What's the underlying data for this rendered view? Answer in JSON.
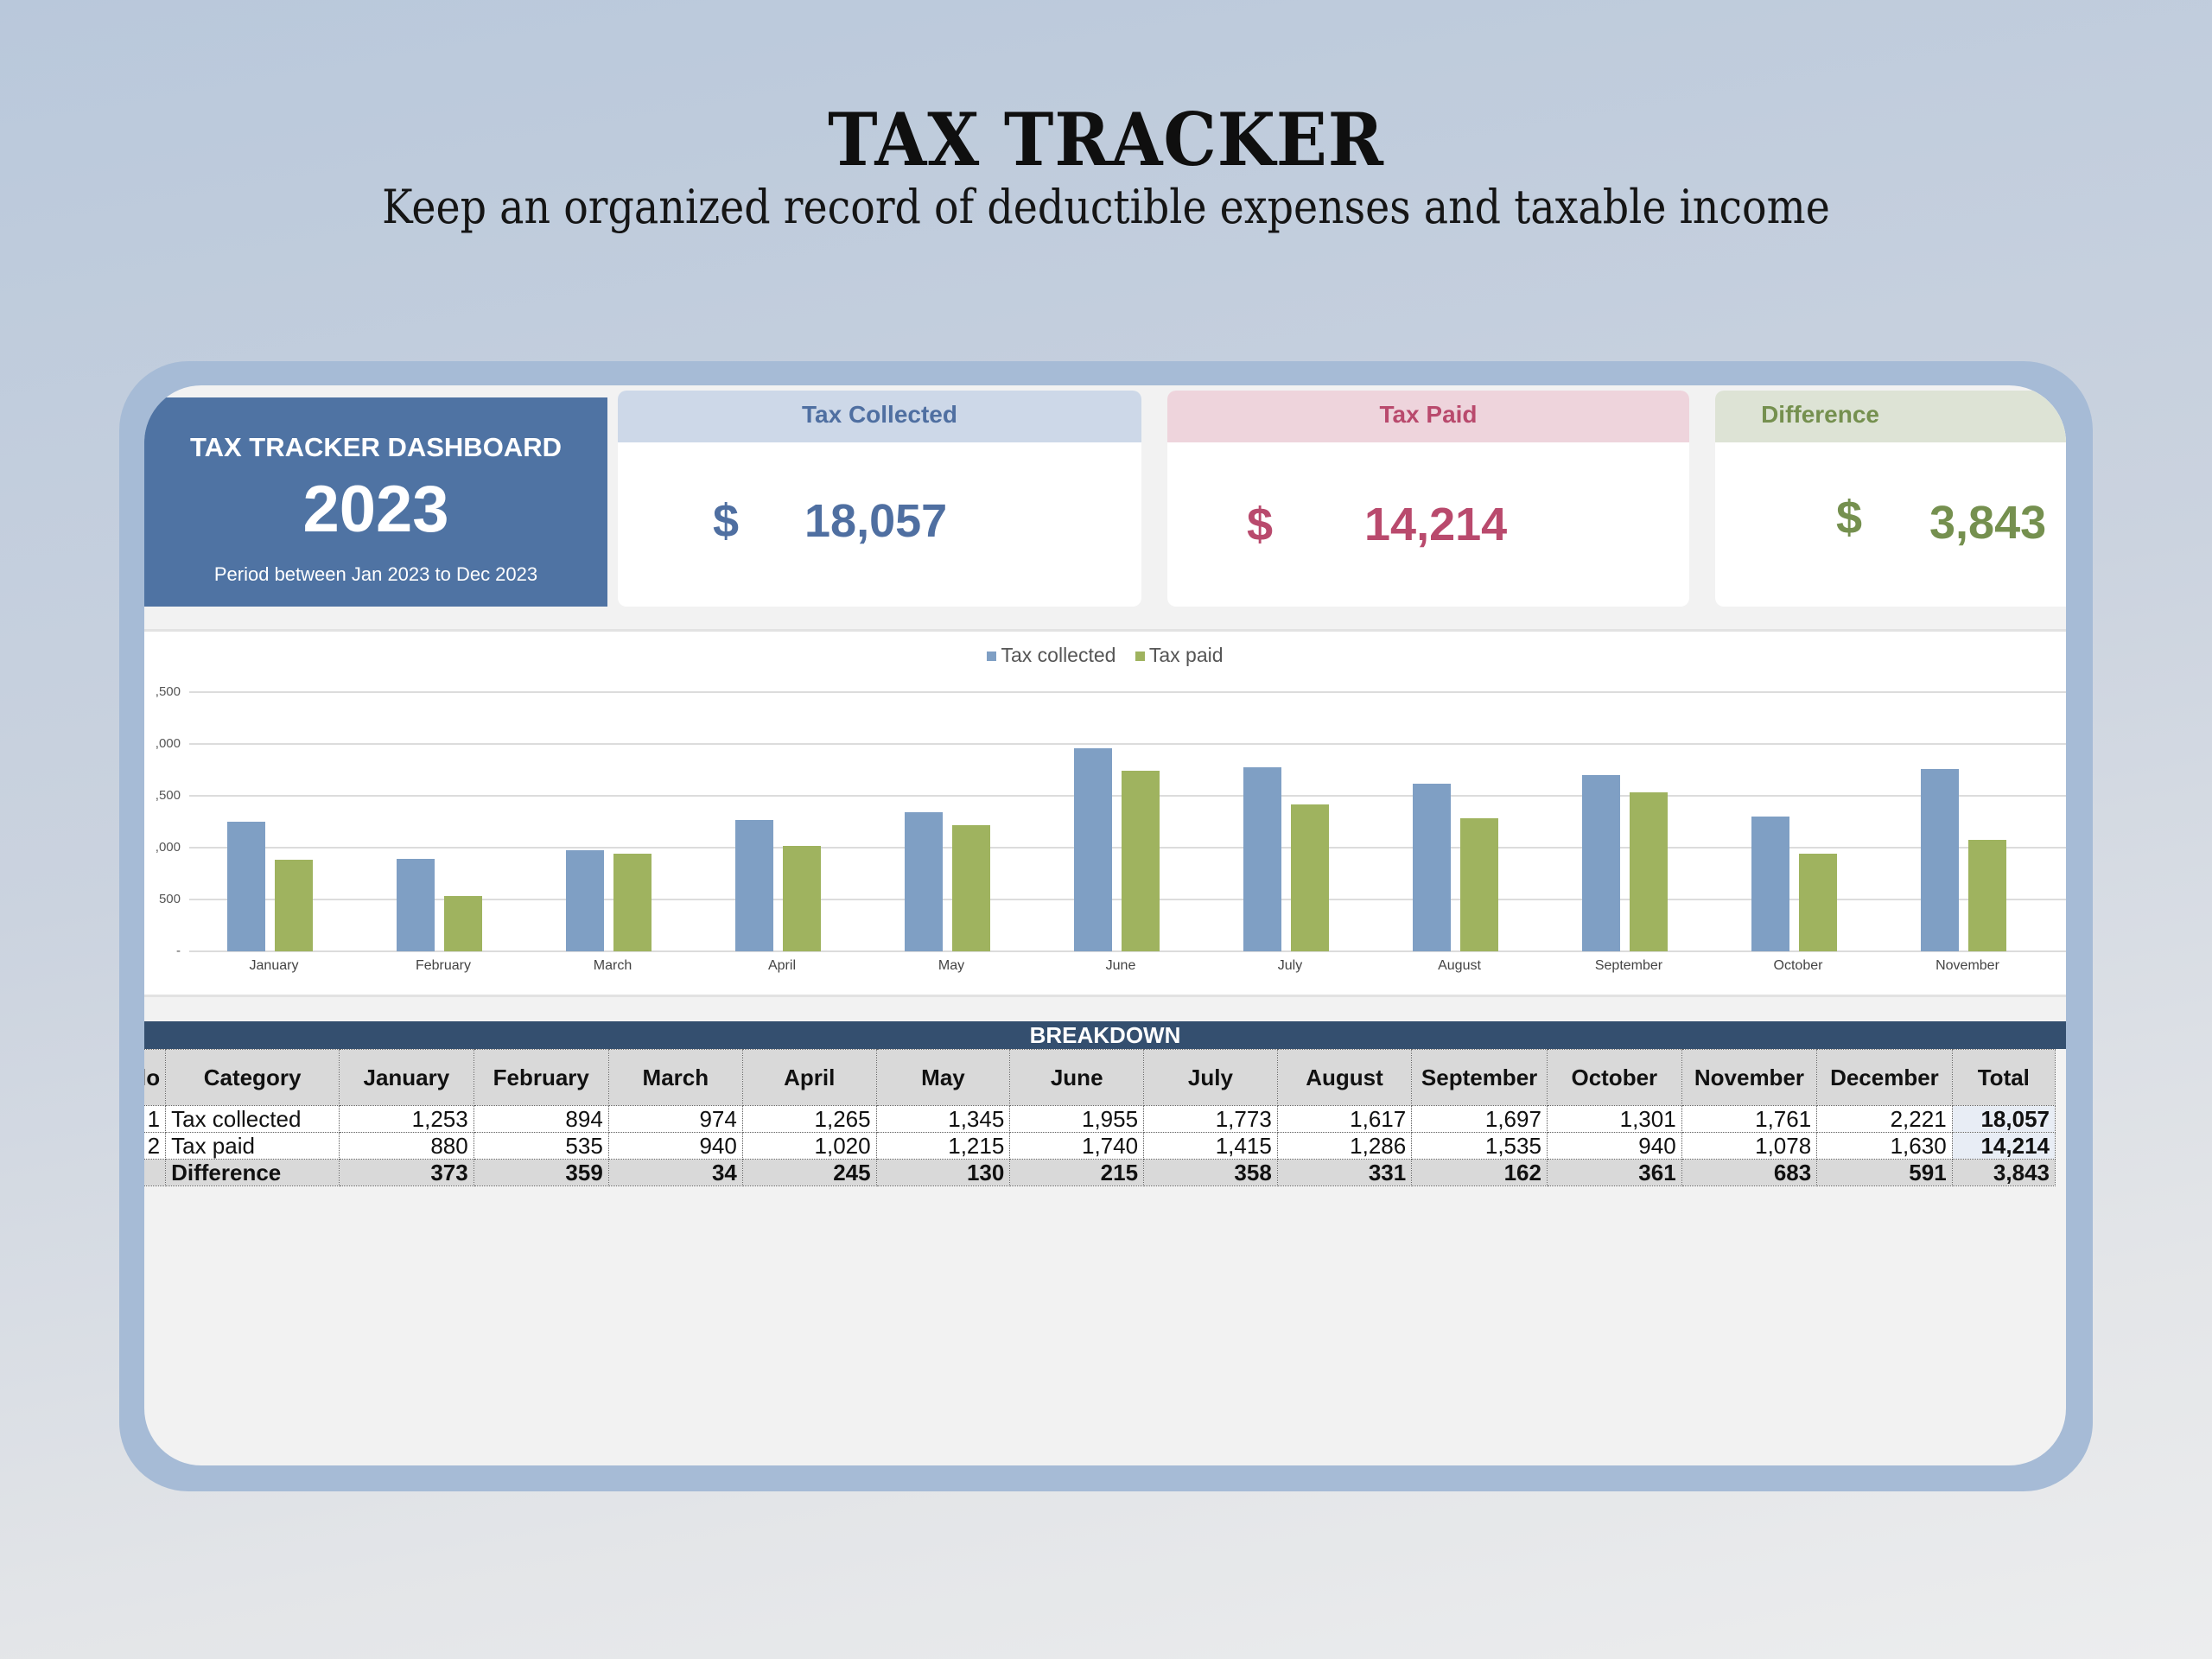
{
  "page": {
    "title": "TAX TRACKER",
    "subtitle": "Keep an organized record of deductible expenses and taxable income"
  },
  "dashboard": {
    "title": "TAX TRACKER DASHBOARD",
    "year": "2023",
    "period": "Period between Jan 2023 to Dec 2023"
  },
  "kpis": [
    {
      "label": "Tax Collected",
      "currency": "$",
      "value": "18,057",
      "color": "#4f6fa1",
      "head_bg": "#cdd8e8"
    },
    {
      "label": "Tax Paid",
      "currency": "$",
      "value": "14,214",
      "color": "#b94a6d",
      "head_bg": "#eed4dc"
    },
    {
      "label": "Difference",
      "currency": "$",
      "value": "3,843",
      "color": "#75904f",
      "head_bg": "#dde3d5"
    }
  ],
  "colors": {
    "tax_collected": "#7f9fc4",
    "tax_paid": "#9fb35f",
    "hero_bg": "#4f73a3",
    "table_title_bg": "#344f6f"
  },
  "chart_data": {
    "type": "bar",
    "title": "",
    "xlabel": "",
    "ylabel": "",
    "ylim": [
      0,
      2500
    ],
    "grid": true,
    "legend_position": "top",
    "y_ticks": [
      "-",
      "500",
      ",000",
      ",500",
      ",000",
      ",500"
    ],
    "categories": [
      "January",
      "February",
      "March",
      "April",
      "May",
      "June",
      "July",
      "August",
      "September",
      "October",
      "November"
    ],
    "series": [
      {
        "name": "Tax collected",
        "color": "#7f9fc4",
        "values": [
          1253,
          894,
          974,
          1265,
          1345,
          1955,
          1773,
          1617,
          1697,
          1301,
          1761
        ]
      },
      {
        "name": "Tax paid",
        "color": "#9fb35f",
        "values": [
          880,
          535,
          940,
          1020,
          1215,
          1740,
          1415,
          1286,
          1535,
          940,
          1078
        ]
      }
    ]
  },
  "breakdown": {
    "title": "BREAKDOWN",
    "columns": [
      "lo",
      "Category",
      "January",
      "February",
      "March",
      "April",
      "May",
      "June",
      "July",
      "August",
      "September",
      "October",
      "November",
      "December",
      "Total"
    ],
    "rows": [
      {
        "no": "1",
        "category": "Tax collected",
        "values": [
          "1,253",
          "894",
          "974",
          "1,265",
          "1,345",
          "1,955",
          "1,773",
          "1,617",
          "1,697",
          "1,301",
          "1,761",
          "2,221"
        ],
        "total": "18,057"
      },
      {
        "no": "2",
        "category": "Tax paid",
        "values": [
          "880",
          "535",
          "940",
          "1,020",
          "1,215",
          "1,740",
          "1,415",
          "1,286",
          "1,535",
          "940",
          "1,078",
          "1,630"
        ],
        "total": "14,214"
      },
      {
        "no": "",
        "category": "Difference",
        "values": [
          "373",
          "359",
          "34",
          "245",
          "130",
          "215",
          "358",
          "331",
          "162",
          "361",
          "683",
          "591"
        ],
        "total": "3,843"
      }
    ]
  }
}
